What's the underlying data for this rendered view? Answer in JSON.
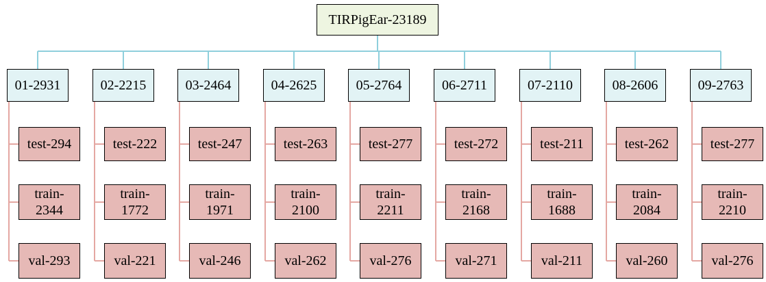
{
  "root": {
    "label": "TIRPigEar-23189"
  },
  "folds": [
    {
      "label": "01-2931",
      "splits": [
        {
          "label": "test-294"
        },
        {
          "label": "train-\n2344"
        },
        {
          "label": "val-293"
        }
      ]
    },
    {
      "label": "02-2215",
      "splits": [
        {
          "label": "test-222"
        },
        {
          "label": "train-\n1772"
        },
        {
          "label": "val-221"
        }
      ]
    },
    {
      "label": "03-2464",
      "splits": [
        {
          "label": "test-247"
        },
        {
          "label": "train-\n1971"
        },
        {
          "label": "val-246"
        }
      ]
    },
    {
      "label": "04-2625",
      "splits": [
        {
          "label": "test-263"
        },
        {
          "label": "train-\n2100"
        },
        {
          "label": "val-262"
        }
      ]
    },
    {
      "label": "05-2764",
      "splits": [
        {
          "label": "test-277"
        },
        {
          "label": "train-\n2211"
        },
        {
          "label": "val-276"
        }
      ]
    },
    {
      "label": "06-2711",
      "splits": [
        {
          "label": "test-272"
        },
        {
          "label": "train-\n2168"
        },
        {
          "label": "val-271"
        }
      ]
    },
    {
      "label": "07-2110",
      "splits": [
        {
          "label": "test-211"
        },
        {
          "label": "train-\n1688"
        },
        {
          "label": "val-211"
        }
      ]
    },
    {
      "label": "08-2606",
      "splits": [
        {
          "label": "test-262"
        },
        {
          "label": "train-\n2084"
        },
        {
          "label": "val-260"
        }
      ]
    },
    {
      "label": "09-2763",
      "splits": [
        {
          "label": "test-277"
        },
        {
          "label": "train-\n2210"
        },
        {
          "label": "val-276"
        }
      ]
    }
  ],
  "colors": {
    "root_fill": "#eef5e1",
    "fold_fill": "#e2f3f5",
    "split_fill": "#e6b9b6",
    "root_connector": "#8ecfdc",
    "split_connector": "#e4a7a2"
  }
}
